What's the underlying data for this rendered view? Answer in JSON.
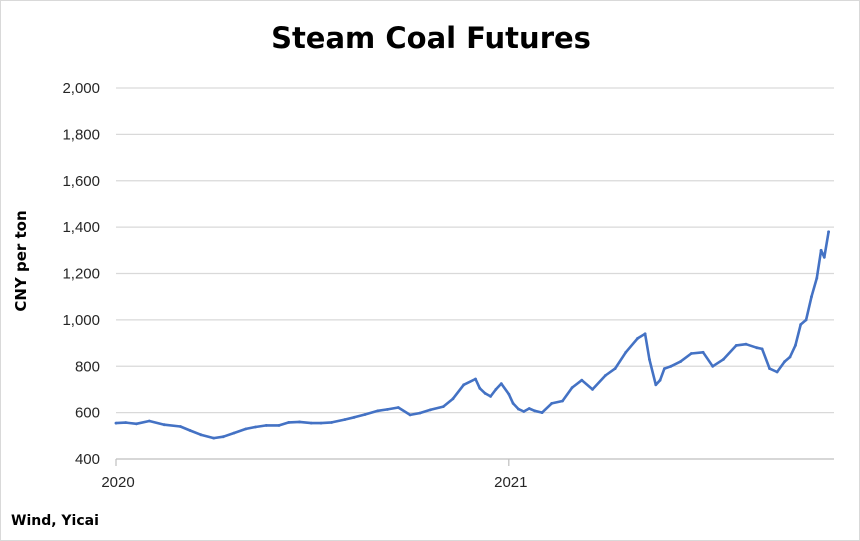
{
  "chart_data": {
    "type": "line",
    "title": "Steam Coal Futures",
    "ylabel": "CNY per ton",
    "source": "Wind, Yicai",
    "ylim": [
      400,
      2000
    ],
    "yticks": [
      400,
      600,
      800,
      1000,
      1200,
      1400,
      1600,
      1800,
      2000
    ],
    "ytick_labels": [
      "400",
      "600",
      "800",
      "1,000",
      "1,200",
      "1,400",
      "1,600",
      "1,800",
      "2,000"
    ],
    "xlim": [
      "2020-01-01",
      "2021-10-31"
    ],
    "xtick_labels": [
      {
        "label": "2020",
        "date": "2020-01-01"
      },
      {
        "label": "2021",
        "date": "2021-01-01"
      }
    ],
    "grid": true,
    "line_color": "#4472C4",
    "series": [
      {
        "x": [
          "2020-01-01",
          "2020-01-10",
          "2020-01-20",
          "2020-02-01",
          "2020-02-15",
          "2020-03-01",
          "2020-03-10",
          "2020-03-20",
          "2020-04-01",
          "2020-04-10",
          "2020-04-20",
          "2020-05-01",
          "2020-05-10",
          "2020-05-20",
          "2020-06-01",
          "2020-06-10",
          "2020-06-20",
          "2020-07-01",
          "2020-07-10",
          "2020-07-20",
          "2020-08-01",
          "2020-08-10",
          "2020-08-20",
          "2020-09-01",
          "2020-09-10",
          "2020-09-20",
          "2020-10-01",
          "2020-10-10",
          "2020-10-20",
          "2020-11-01",
          "2020-11-10",
          "2020-11-20",
          "2020-12-01",
          "2020-12-05",
          "2020-12-10",
          "2020-12-15",
          "2020-12-20",
          "2020-12-25",
          "2021-01-01",
          "2021-01-05",
          "2021-01-10",
          "2021-01-15",
          "2021-01-20",
          "2021-01-25",
          "2021-02-01",
          "2021-02-10",
          "2021-02-20",
          "2021-03-01",
          "2021-03-10",
          "2021-03-20",
          "2021-04-01",
          "2021-04-10",
          "2021-04-20",
          "2021-05-01",
          "2021-05-08",
          "2021-05-12",
          "2021-05-18",
          "2021-05-22",
          "2021-05-26",
          "2021-06-01",
          "2021-06-10",
          "2021-06-20",
          "2021-07-01",
          "2021-07-10",
          "2021-07-20",
          "2021-08-01",
          "2021-08-10",
          "2021-08-20",
          "2021-08-25",
          "2021-09-01",
          "2021-09-08",
          "2021-09-15",
          "2021-09-20",
          "2021-09-25",
          "2021-09-30",
          "2021-10-05",
          "2021-10-10",
          "2021-10-15",
          "2021-10-19",
          "2021-10-22",
          "2021-10-26"
        ],
        "values": [
          555,
          557,
          552,
          564,
          548,
          540,
          523,
          505,
          490,
          496,
          512,
          530,
          538,
          545,
          545,
          558,
          560,
          555,
          555,
          558,
          570,
          580,
          592,
          608,
          614,
          622,
          590,
          598,
          612,
          626,
          660,
          720,
          745,
          705,
          683,
          670,
          700,
          725,
          680,
          640,
          615,
          605,
          618,
          608,
          600,
          640,
          650,
          708,
          740,
          700,
          760,
          790,
          860,
          920,
          940,
          830,
          720,
          740,
          790,
          800,
          820,
          855,
          860,
          800,
          830,
          890,
          895,
          880,
          875,
          790,
          775,
          820,
          840,
          890,
          980,
          1000,
          1100,
          1180,
          1300,
          1270,
          1380
        ]
      }
    ]
  }
}
